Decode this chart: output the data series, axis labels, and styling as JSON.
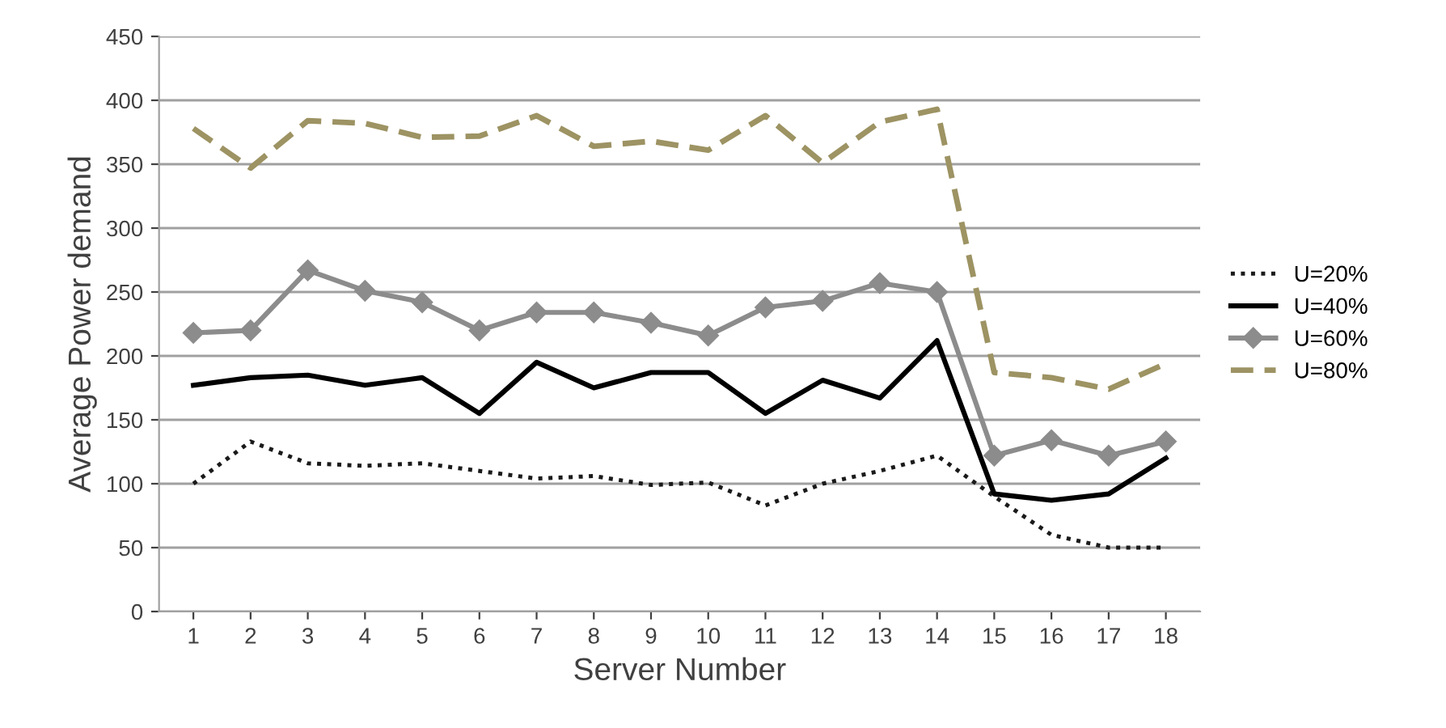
{
  "chart_data": {
    "type": "line",
    "xlabel": "Server Number",
    "ylabel": "Average Power demand",
    "categories": [
      "1",
      "2",
      "3",
      "4",
      "5",
      "6",
      "7",
      "8",
      "9",
      "10",
      "11",
      "12",
      "13",
      "14",
      "15",
      "16",
      "17",
      "18"
    ],
    "ylim": [
      0,
      450
    ],
    "yticks": [
      0,
      50,
      100,
      150,
      200,
      250,
      300,
      350,
      400,
      450
    ],
    "grid": "y",
    "legend": "right",
    "series": [
      {
        "name": "U=20%",
        "color": "#1a1a1a",
        "line_style": "dotted",
        "marker": "none",
        "values": [
          100,
          133,
          116,
          114,
          116,
          110,
          104,
          106,
          99,
          101,
          83,
          100,
          110,
          122,
          90,
          60,
          50,
          50
        ]
      },
      {
        "name": "U=40%",
        "color": "#000000",
        "line_style": "solid",
        "marker": "none",
        "values": [
          177,
          183,
          185,
          177,
          183,
          155,
          195,
          175,
          187,
          187,
          155,
          181,
          167,
          212,
          92,
          87,
          92,
          120
        ]
      },
      {
        "name": "U=60%",
        "color": "#8c8c8c",
        "line_style": "solid",
        "marker": "diamond",
        "values": [
          218,
          220,
          267,
          251,
          242,
          220,
          234,
          234,
          226,
          216,
          238,
          243,
          257,
          250,
          122,
          134,
          122,
          133
        ]
      },
      {
        "name": "U=80%",
        "color": "#9d9363",
        "line_style": "dashed",
        "marker": "none",
        "values": [
          378,
          347,
          384,
          382,
          371,
          372,
          388,
          364,
          368,
          361,
          388,
          351,
          383,
          393,
          187,
          183,
          174,
          194
        ]
      }
    ]
  }
}
